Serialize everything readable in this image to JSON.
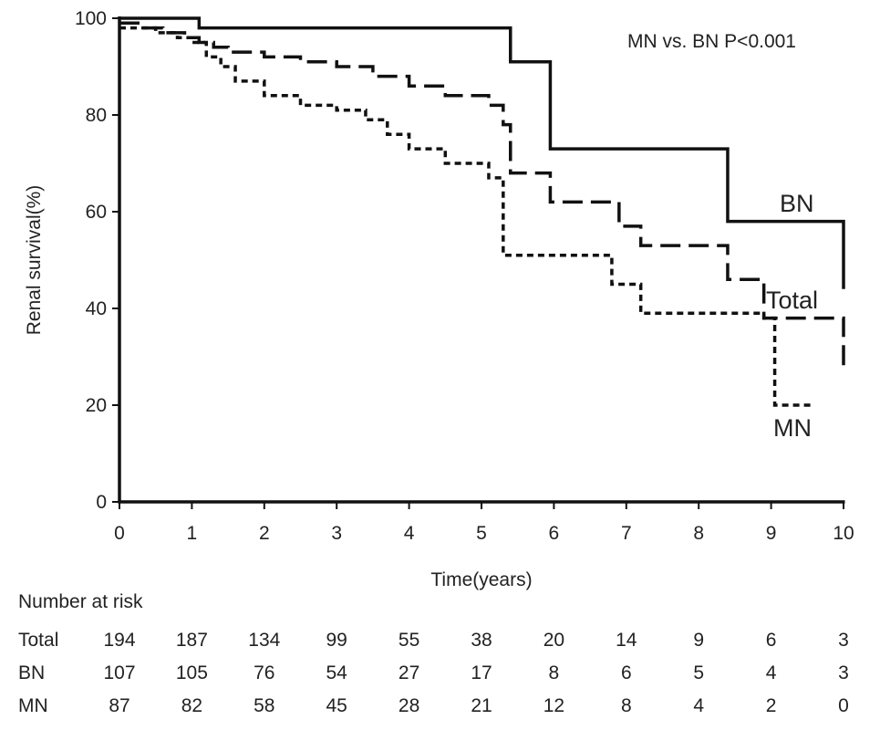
{
  "chart_data": {
    "type": "line",
    "step": true,
    "title": "",
    "annotation": "MN vs. BN P<0.001",
    "xlabel": "Time(years)",
    "ylabel": "Renal survival(%)",
    "xlim": [
      0,
      10
    ],
    "ylim": [
      0,
      100
    ],
    "x_ticks": [
      "0",
      "1",
      "2",
      "3",
      "4",
      "5",
      "6",
      "7",
      "8",
      "9",
      "10"
    ],
    "y_ticks": [
      "0",
      "20",
      "40",
      "60",
      "80",
      "100"
    ],
    "grid": false,
    "series": [
      {
        "name": "BN",
        "style": "solid",
        "x": [
          0,
          1.1,
          5.4,
          5.95,
          8.4,
          10
        ],
        "y": [
          100,
          98,
          91,
          73,
          58,
          44
        ]
      },
      {
        "name": "Total",
        "style": "long-dash",
        "x": [
          0,
          0.3,
          0.6,
          0.9,
          1.1,
          1.3,
          1.5,
          2.0,
          2.5,
          3.0,
          3.5,
          4.0,
          4.5,
          5.1,
          5.3,
          5.4,
          5.95,
          6.9,
          7.2,
          8.4,
          8.9,
          10
        ],
        "y": [
          99,
          98,
          97,
          96,
          95,
          94,
          93,
          92,
          91,
          90,
          88,
          86,
          84,
          82,
          78,
          68,
          62,
          57,
          53,
          46,
          38,
          28
        ]
      },
      {
        "name": "MN",
        "style": "short-dash",
        "x": [
          0,
          0.5,
          0.8,
          1.0,
          1.2,
          1.4,
          1.6,
          2.0,
          2.5,
          3.0,
          3.4,
          3.7,
          4.0,
          4.5,
          5.1,
          5.3,
          6.0,
          6.8,
          7.2,
          8.4,
          8.9,
          9.05,
          9.55
        ],
        "y": [
          98,
          97,
          96,
          95,
          92,
          90,
          87,
          84,
          82,
          81,
          79,
          76,
          73,
          70,
          67,
          51,
          51,
          45,
          39,
          39,
          38,
          20,
          20
        ]
      }
    ],
    "number_at_risk": {
      "title": "Number at risk",
      "rows": [
        {
          "name": "Total",
          "values": [
            "194",
            "187",
            "134",
            "99",
            "55",
            "38",
            "20",
            "14",
            "9",
            "6",
            "3"
          ]
        },
        {
          "name": "BN",
          "values": [
            "107",
            "105",
            "76",
            "54",
            "27",
            "17",
            "8",
            "6",
            "5",
            "4",
            "3"
          ]
        },
        {
          "name": "MN",
          "values": [
            "87",
            "82",
            "58",
            "45",
            "28",
            "21",
            "12",
            "8",
            "4",
            "2",
            "0"
          ]
        }
      ]
    }
  }
}
